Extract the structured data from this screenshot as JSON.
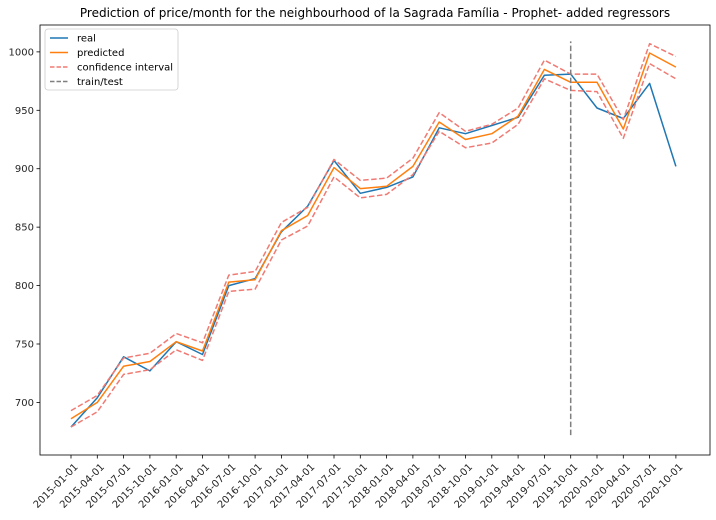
{
  "chart_data": {
    "type": "line",
    "title": "Prediction of price/month for the neighbourhood of la Sagrada Família - Prophet- added regressors",
    "xlabel": "",
    "ylabel": "",
    "ylim": [
      655,
      1023
    ],
    "yticks": [
      700,
      750,
      800,
      850,
      900,
      950,
      1000
    ],
    "x": [
      "2015-01-01",
      "2015-04-01",
      "2015-07-01",
      "2015-10-01",
      "2016-01-01",
      "2016-04-01",
      "2016-07-01",
      "2016-10-01",
      "2017-01-01",
      "2017-04-01",
      "2017-07-01",
      "2017-10-01",
      "2018-01-01",
      "2018-04-01",
      "2018-07-01",
      "2018-10-01",
      "2019-01-01",
      "2019-04-01",
      "2019-07-01",
      "2019-10-01",
      "2020-01-01",
      "2020-04-01",
      "2020-07-01",
      "2020-10-01"
    ],
    "series": [
      {
        "name": "real",
        "color": "#1f77b4",
        "dash": "solid",
        "values": [
          679,
          704,
          739,
          727,
          752,
          741,
          800,
          806,
          846,
          868,
          907,
          879,
          884,
          893,
          935,
          930,
          937,
          944,
          980,
          981,
          952,
          943,
          973,
          902
        ]
      },
      {
        "name": "predicted",
        "color": "#ff7f0e",
        "dash": "solid",
        "values": [
          686,
          700,
          731,
          735,
          752,
          744,
          803,
          805,
          847,
          860,
          901,
          883,
          885,
          902,
          940,
          925,
          930,
          945,
          985,
          974,
          974,
          934,
          999,
          987
        ]
      },
      {
        "name": "confidence interval",
        "color": "#f07a73",
        "dash": "dashed",
        "values": [
          693,
          706,
          738,
          742,
          759,
          751,
          809,
          812,
          854,
          867,
          908,
          890,
          892,
          909,
          948,
          932,
          938,
          952,
          993,
          981,
          981,
          942,
          1007,
          996
        ]
      },
      {
        "name": "",
        "color": "#f07a73",
        "dash": "dashed",
        "values": [
          679,
          692,
          724,
          728,
          745,
          736,
          795,
          797,
          839,
          851,
          893,
          875,
          878,
          895,
          932,
          918,
          922,
          938,
          977,
          967,
          966,
          926,
          990,
          977
        ]
      }
    ],
    "vline": {
      "name": "train/test",
      "x": "2019-10-01",
      "color": "#7f7f7f",
      "ymin": 672,
      "ymax": 1009
    },
    "legend": {
      "position": "top-left",
      "entries": [
        {
          "label": "real",
          "color": "#1f77b4",
          "dash": "solid"
        },
        {
          "label": "predicted",
          "color": "#ff7f0e",
          "dash": "solid"
        },
        {
          "label": "confidence interval",
          "color": "#f07a73",
          "dash": "dashed"
        },
        {
          "label": "train/test",
          "color": "#7f7f7f",
          "dash": "dashed"
        }
      ]
    },
    "grid": false
  }
}
